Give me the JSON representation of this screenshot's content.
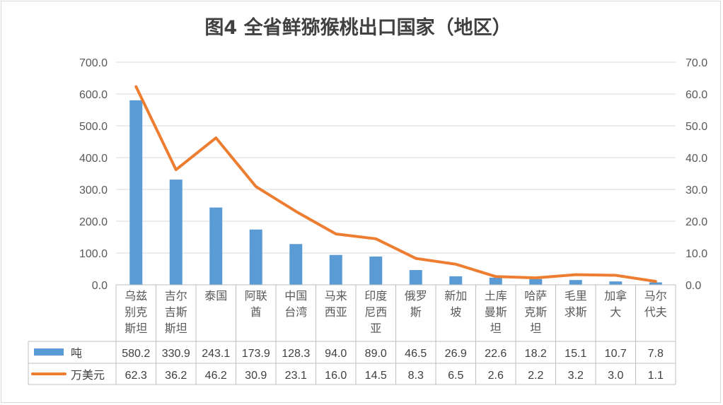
{
  "chart_data": {
    "type": "bar",
    "title": "图4  全省鲜猕猴桃出口国家（地区）",
    "categories": [
      [
        "乌兹",
        "别克",
        "斯坦"
      ],
      [
        "吉尔",
        "吉斯",
        "斯坦"
      ],
      [
        "泰国"
      ],
      [
        "阿联",
        "酋"
      ],
      [
        "中国",
        "台湾"
      ],
      [
        "马来",
        "西亚"
      ],
      [
        "印度",
        "尼西",
        "亚"
      ],
      [
        "俄罗",
        "斯"
      ],
      [
        "新加",
        "坡"
      ],
      [
        "土库",
        "曼斯",
        "坦"
      ],
      [
        "哈萨",
        "克斯",
        "坦"
      ],
      [
        "毛里",
        "求斯"
      ],
      [
        "加拿",
        "大"
      ],
      [
        "马尔",
        "代夫"
      ]
    ],
    "series": [
      {
        "name": "吨",
        "type": "bar",
        "axis": "left",
        "color": "#5b9bd5",
        "values": [
          580.2,
          330.9,
          243.1,
          173.9,
          128.3,
          94.0,
          89.0,
          46.5,
          26.9,
          22.6,
          18.2,
          15.1,
          10.7,
          7.8
        ],
        "labels": [
          "580.2",
          "330.9",
          "243.1",
          "173.9",
          "128.3",
          "94.0",
          "89.0",
          "46.5",
          "26.9",
          "22.6",
          "18.2",
          "15.1",
          "10.7",
          "7.8"
        ]
      },
      {
        "name": "万美元",
        "type": "line",
        "axis": "right",
        "color": "#ed7d31",
        "values": [
          62.3,
          36.2,
          46.2,
          30.9,
          23.1,
          16.0,
          14.5,
          8.3,
          6.5,
          2.6,
          2.2,
          3.2,
          3.0,
          1.1
        ],
        "labels": [
          "62.3",
          "36.2",
          "46.2",
          "30.9",
          "23.1",
          "16.0",
          "14.5",
          "8.3",
          "6.5",
          "2.6",
          "2.2",
          "3.2",
          "3.0",
          "1.1"
        ]
      }
    ],
    "y_left": {
      "min": 0,
      "max": 700,
      "ticks": [
        "700.0",
        "600.0",
        "500.0",
        "400.0",
        "300.0",
        "200.0",
        "100.0",
        "0.0"
      ]
    },
    "y_right": {
      "min": 0,
      "max": 70,
      "ticks": [
        "70.0",
        "60.0",
        "50.0",
        "40.0",
        "30.0",
        "20.0",
        "10.0",
        "0.0"
      ]
    },
    "grid": true,
    "legend": "data-table"
  }
}
